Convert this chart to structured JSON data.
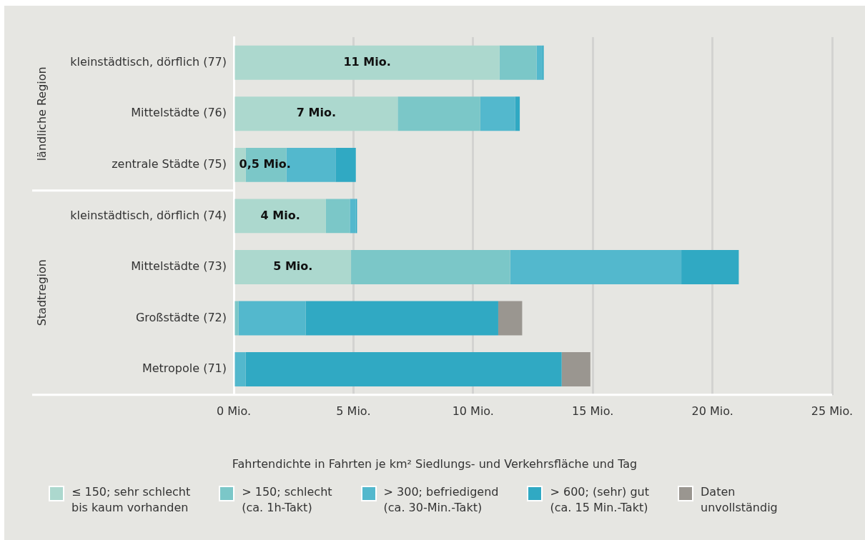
{
  "chart_data": {
    "type": "bar",
    "orientation": "horizontal",
    "stacked": true,
    "categories": [
      "kleinstädtisch, dörflich (77)",
      "Mittelstädte (76)",
      "zentrale Städte (75)",
      "kleinstädtisch, dörflich (74)",
      "Mittelstädte (73)",
      "Großstädte (72)",
      "Metropole (71)"
    ],
    "series": [
      {
        "name": "≤ 150; sehr schlecht\nbis kaum vorhanden",
        "color": "#acd8ce",
        "values": [
          11.1,
          6.85,
          0.5,
          3.85,
          4.9,
          0,
          0
        ],
        "value_labels": [
          "11 Mio.",
          "7 Mio.",
          "0,5 Mio.",
          "4 Mio.",
          "5 Mio.",
          null,
          null
        ]
      },
      {
        "name": "> 150; schlecht\n(ca. 1h-Takt)",
        "color": "#7bc7c8",
        "values": [
          1.55,
          3.45,
          1.7,
          1.0,
          6.65,
          0.2,
          0
        ]
      },
      {
        "name": "> 300; befriedigend\n(ca. 30-Min.-Takt)",
        "color": "#53b8cd",
        "values": [
          0.25,
          1.45,
          2.05,
          0.25,
          7.15,
          2.8,
          0.5
        ]
      },
      {
        "name": "> 600; (sehr) gut\n(ca. 15 Min.-Takt)",
        "color": "#30a9c3",
        "values": [
          0.05,
          0.2,
          0.85,
          0.05,
          2.4,
          8.05,
          13.2
        ]
      },
      {
        "name": "Daten\nunvollständig",
        "color": "#9a9690",
        "values": [
          0,
          0,
          0,
          0,
          0,
          1.0,
          1.2
        ]
      }
    ],
    "xlim": [
      0,
      25
    ],
    "xticks": [
      {
        "value": 0,
        "label": "0 Mio."
      },
      {
        "value": 5,
        "label": "5 Mio."
      },
      {
        "value": 10,
        "label": "10 Mio."
      },
      {
        "value": 15,
        "label": "15 Mio."
      },
      {
        "value": 20,
        "label": "20 Mio."
      },
      {
        "value": 25,
        "label": "25 Mio."
      }
    ],
    "grid": "x",
    "legend": "bottom",
    "legend_title": "Fahrtendichte in Fahrten je km² Siedlungs- und Verkehrsfläche und Tag",
    "annotations": [
      "ländliche Region",
      "Stadtregion"
    ]
  }
}
